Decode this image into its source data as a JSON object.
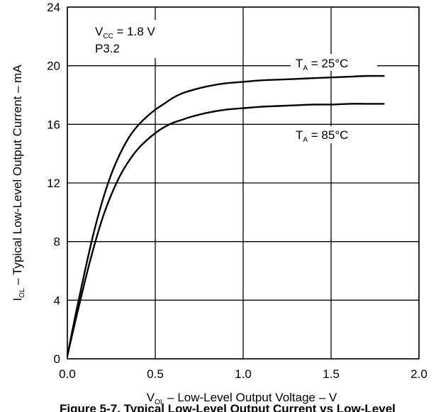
{
  "chart_data": {
    "type": "line",
    "xlabel": {
      "main": "V",
      "sub": "OL",
      "rest": " – Low-Level Output Voltage – V"
    },
    "ylabel": {
      "main": "I",
      "sub": "OL",
      "rest": " – Typical Low-Level Output Current – mA"
    },
    "xlim": [
      0,
      2.0
    ],
    "ylim": [
      0,
      24
    ],
    "x_ticks": [
      "0.0",
      "0.5",
      "1.0",
      "1.5",
      "2.0"
    ],
    "y_ticks": [
      "0",
      "4",
      "8",
      "12",
      "16",
      "20",
      "24"
    ],
    "grid": true,
    "annotations": {
      "vcc": {
        "main": "V",
        "sub": "CC",
        "rest": " = 1.8 V"
      },
      "pin": "P3.2"
    },
    "series": [
      {
        "label": {
          "main": "T",
          "sub": "A",
          "rest": " = 25°C"
        },
        "color": "#000000",
        "x": [
          0.0,
          0.05,
          0.1,
          0.15,
          0.2,
          0.25,
          0.3,
          0.35,
          0.4,
          0.45,
          0.5,
          0.55,
          0.6,
          0.65,
          0.7,
          0.8,
          0.9,
          1.0,
          1.1,
          1.2,
          1.3,
          1.4,
          1.5,
          1.6,
          1.7,
          1.8
        ],
        "y": [
          0.2,
          3.2,
          6.0,
          8.6,
          10.8,
          12.6,
          14.0,
          15.1,
          15.9,
          16.5,
          17.0,
          17.4,
          17.8,
          18.1,
          18.3,
          18.6,
          18.8,
          18.9,
          19.0,
          19.05,
          19.1,
          19.15,
          19.2,
          19.25,
          19.3,
          19.3
        ]
      },
      {
        "label": {
          "main": "T",
          "sub": "A",
          "rest": " = 85°C"
        },
        "color": "#000000",
        "x": [
          0.0,
          0.05,
          0.1,
          0.15,
          0.2,
          0.25,
          0.3,
          0.35,
          0.4,
          0.45,
          0.5,
          0.55,
          0.6,
          0.65,
          0.7,
          0.8,
          0.9,
          1.0,
          1.1,
          1.2,
          1.3,
          1.4,
          1.5,
          1.6,
          1.7,
          1.8
        ],
        "y": [
          0.2,
          2.8,
          5.3,
          7.6,
          9.6,
          11.2,
          12.5,
          13.5,
          14.3,
          14.9,
          15.4,
          15.8,
          16.1,
          16.3,
          16.5,
          16.8,
          17.0,
          17.1,
          17.2,
          17.25,
          17.3,
          17.35,
          17.35,
          17.4,
          17.4,
          17.4
        ]
      }
    ]
  },
  "caption": "Figure 5-7. Typical Low-Level Output Current vs Low-Level"
}
